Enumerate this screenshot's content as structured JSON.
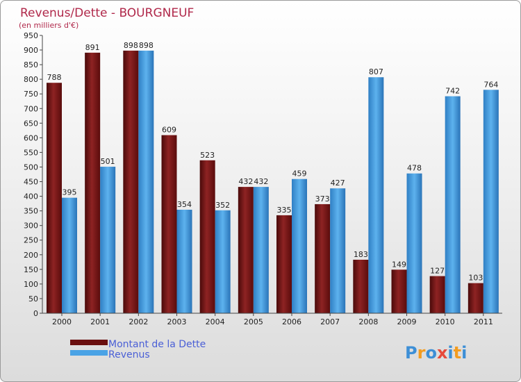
{
  "chart_data": {
    "type": "bar",
    "title": "Revenus/Dette - BOURGNEUF",
    "subtitle": "(en milliers d'€)",
    "categories": [
      "2000",
      "2001",
      "2002",
      "2003",
      "2004",
      "2005",
      "2006",
      "2007",
      "2008",
      "2009",
      "2010",
      "2011"
    ],
    "series": [
      {
        "name": "Montant de la Dette",
        "color": "#7a1414",
        "values": [
          788,
          891,
          898,
          609,
          523,
          432,
          335,
          373,
          183,
          149,
          127,
          103
        ]
      },
      {
        "name": "Revenus",
        "color": "#4aa3e6",
        "values": [
          395,
          501,
          898,
          354,
          352,
          432,
          459,
          427,
          807,
          478,
          742,
          764
        ]
      }
    ],
    "ylim": [
      0,
      950
    ],
    "ytick_step": 50,
    "grid": false,
    "legend_position": "bottom-left"
  },
  "logo": {
    "text": "Proxiti",
    "letters": [
      "P",
      "r",
      "o",
      "x",
      "i",
      "t",
      "i"
    ],
    "colors": [
      "#3d8fd6",
      "#f39c1f",
      "#3d8fd6",
      "#e7493a",
      "#3d8fd6",
      "#f39c1f",
      "#3d8fd6"
    ]
  }
}
